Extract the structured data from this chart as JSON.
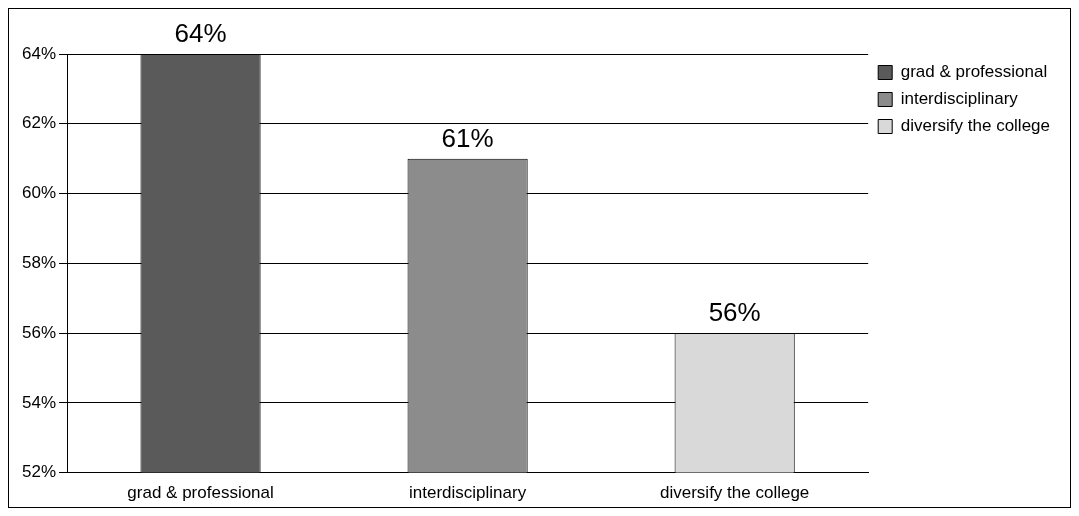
{
  "chart_data": {
    "type": "bar",
    "categories": [
      "grad & professional",
      "interdisciplinary",
      "diversify the college"
    ],
    "series": [
      {
        "name": "grad & professional",
        "color": "#5a5a5a",
        "values": [
          64,
          null,
          null
        ],
        "value_labels": [
          "64%",
          null,
          null
        ]
      },
      {
        "name": "interdisciplinary",
        "color": "#8c8c8c",
        "values": [
          null,
          61,
          null
        ],
        "value_labels": [
          null,
          "61%",
          null
        ]
      },
      {
        "name": "diversify the college",
        "color": "#d9d9d9",
        "values": [
          null,
          null,
          56
        ],
        "value_labels": [
          null,
          null,
          "56%"
        ]
      }
    ],
    "ylim": [
      52,
      64
    ],
    "yticks": [
      {
        "value": 52,
        "label": "52%"
      },
      {
        "value": 54,
        "label": "54%"
      },
      {
        "value": 56,
        "label": "56%"
      },
      {
        "value": 58,
        "label": "58%"
      },
      {
        "value": 60,
        "label": "60%"
      },
      {
        "value": 62,
        "label": "62%"
      },
      {
        "value": 64,
        "label": "64%"
      }
    ],
    "grid": "y",
    "legend": "top right"
  }
}
